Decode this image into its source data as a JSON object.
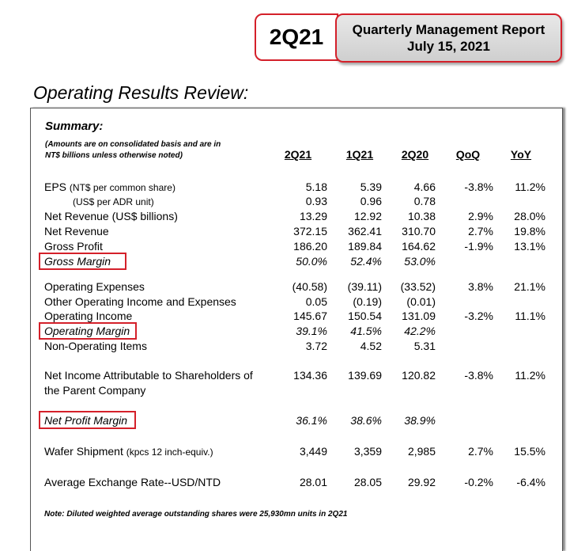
{
  "header": {
    "quarter": "2Q21",
    "report_title": "Quarterly Management Report",
    "report_date": "July 15, 2021"
  },
  "section_title": "Operating Results Review:",
  "summary": {
    "title": "Summary:",
    "note_line1": "(Amounts are on consolidated basis and are in",
    "note_line2": "NT$ billions unless otherwise noted)",
    "columns": [
      "2Q21",
      "1Q21",
      "2Q20",
      "QoQ",
      "YoY"
    ]
  },
  "rows": {
    "eps": {
      "label": "EPS",
      "unit": "(NT$ per common share)",
      "values": [
        "5.18",
        "5.39",
        "4.66",
        "-3.8%",
        "11.2%"
      ]
    },
    "eps_adr": {
      "label": "(US$ per ADR unit)",
      "values": [
        "0.93",
        "0.96",
        "0.78"
      ]
    },
    "rev_usd": {
      "label": "Net Revenue (US$ billions)",
      "values": [
        "13.29",
        "12.92",
        "10.38",
        "2.9%",
        "28.0%"
      ]
    },
    "rev": {
      "label": "Net Revenue",
      "values": [
        "372.15",
        "362.41",
        "310.70",
        "2.7%",
        "19.8%"
      ]
    },
    "gp": {
      "label": "Gross Profit",
      "values": [
        "186.20",
        "189.84",
        "164.62",
        "-1.9%",
        "13.1%"
      ]
    },
    "gm": {
      "label": "Gross Margin",
      "values": [
        "50.0%",
        "52.4%",
        "53.0%"
      ]
    },
    "opex": {
      "label": "Operating Expenses",
      "values": [
        "(40.58)",
        "(39.11)",
        "(33.52)",
        "3.8%",
        "21.1%"
      ]
    },
    "other_op": {
      "label": "Other Operating Income and Expenses",
      "values": [
        "0.05",
        "(0.19)",
        "(0.01)"
      ]
    },
    "op_inc": {
      "label": "Operating Income",
      "values": [
        "145.67",
        "150.54",
        "131.09",
        "-3.2%",
        "11.1%"
      ]
    },
    "op_margin": {
      "label": "Operating Margin",
      "values": [
        "39.1%",
        "41.5%",
        "42.2%"
      ]
    },
    "non_op": {
      "label": "Non-Operating Items",
      "values": [
        "3.72",
        "4.52",
        "5.31"
      ]
    },
    "net_income": {
      "label1": "Net Income Attributable to Shareholders of",
      "label2": "the Parent Company",
      "values": [
        "134.36",
        "139.69",
        "120.82",
        "-3.8%",
        "11.2%"
      ]
    },
    "npm": {
      "label": "Net Profit Margin",
      "values": [
        "36.1%",
        "38.6%",
        "38.9%"
      ]
    },
    "wafer": {
      "label": "Wafer Shipment",
      "unit": "(kpcs 12 inch-equiv.)",
      "values": [
        "3,449",
        "3,359",
        "2,985",
        "2.7%",
        "15.5%"
      ]
    },
    "fx": {
      "label": "Average Exchange Rate--USD/NTD",
      "values": [
        "28.01",
        "28.05",
        "29.92",
        "-0.2%",
        "-6.4%"
      ]
    }
  },
  "footnote": "Note: Diluted weighted average outstanding shares were 25,930mn units in 2Q21",
  "colors": {
    "highlight_border": "#d4202a",
    "report_box_fill": "#d8d8d8"
  }
}
